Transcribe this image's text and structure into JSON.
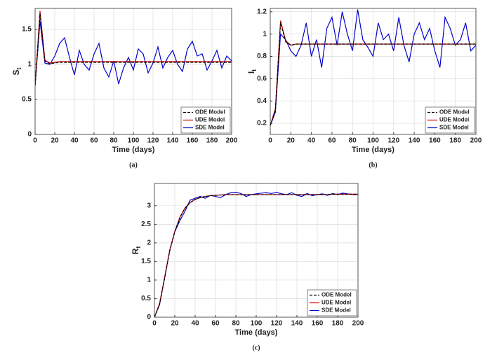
{
  "chart_data": [
    {
      "type": "line",
      "ylabel": "S",
      "ylabel_sub": "t",
      "xlabel": "Time (days)",
      "caption": "(a)",
      "x": [
        0,
        5,
        10,
        15,
        20,
        25,
        30,
        35,
        40,
        45,
        50,
        55,
        60,
        65,
        70,
        75,
        80,
        85,
        90,
        95,
        100,
        105,
        110,
        115,
        120,
        125,
        130,
        135,
        140,
        145,
        150,
        155,
        160,
        165,
        170,
        175,
        180,
        185,
        190,
        195,
        200
      ],
      "xlim": [
        0,
        200
      ],
      "xticks": [
        0,
        20,
        40,
        60,
        80,
        100,
        120,
        140,
        160,
        180,
        200
      ],
      "ylim": [
        0,
        1.8
      ],
      "yticks": [
        0,
        0.5,
        1,
        1.5
      ],
      "grid": true,
      "legend": "bottom-right",
      "series": [
        {
          "name": "ODE Model",
          "color": "#000000",
          "dash": true,
          "values": [
            0.7,
            1.72,
            1.05,
            1.01,
            1.02,
            1.03,
            1.03,
            1.03,
            1.03,
            1.03,
            1.03,
            1.03,
            1.03,
            1.03,
            1.03,
            1.03,
            1.03,
            1.03,
            1.03,
            1.03,
            1.03,
            1.03,
            1.03,
            1.03,
            1.03,
            1.03,
            1.03,
            1.03,
            1.03,
            1.03,
            1.03,
            1.03,
            1.03,
            1.03,
            1.03,
            1.03,
            1.03,
            1.03,
            1.03,
            1.03,
            1.03
          ]
        },
        {
          "name": "UDE Model",
          "color": "#cc0000",
          "dash": false,
          "values": [
            0.7,
            1.76,
            1.06,
            1.02,
            1.03,
            1.04,
            1.04,
            1.04,
            1.04,
            1.04,
            1.04,
            1.04,
            1.04,
            1.04,
            1.04,
            1.04,
            1.04,
            1.04,
            1.04,
            1.04,
            1.04,
            1.04,
            1.04,
            1.04,
            1.04,
            1.04,
            1.04,
            1.04,
            1.04,
            1.04,
            1.04,
            1.04,
            1.04,
            1.04,
            1.04,
            1.04,
            1.04,
            1.04,
            1.04,
            1.04,
            1.04
          ]
        },
        {
          "name": "SDE Model",
          "color": "#0000cc",
          "dash": false,
          "values": [
            0.7,
            1.62,
            1.02,
            1.0,
            1.12,
            1.3,
            1.38,
            1.1,
            0.85,
            1.2,
            1.0,
            0.92,
            1.15,
            1.3,
            0.95,
            0.82,
            1.05,
            0.72,
            0.95,
            1.1,
            0.92,
            1.22,
            1.15,
            0.88,
            1.02,
            1.25,
            0.95,
            1.1,
            1.2,
            1.0,
            0.9,
            1.22,
            1.33,
            1.12,
            1.15,
            0.92,
            1.05,
            1.2,
            0.95,
            1.12,
            1.05
          ]
        }
      ]
    },
    {
      "type": "line",
      "ylabel": "I",
      "ylabel_sub": "t",
      "xlabel": "Time (days)",
      "caption": "(b)",
      "x": [
        0,
        5,
        10,
        15,
        20,
        25,
        30,
        35,
        40,
        45,
        50,
        55,
        60,
        65,
        70,
        75,
        80,
        85,
        90,
        95,
        100,
        105,
        110,
        115,
        120,
        125,
        130,
        135,
        140,
        145,
        150,
        155,
        160,
        165,
        170,
        175,
        180,
        185,
        190,
        195,
        200
      ],
      "xlim": [
        0,
        200
      ],
      "xticks": [
        0,
        20,
        40,
        60,
        80,
        100,
        120,
        140,
        160,
        180,
        200
      ],
      "ylim": [
        0.1,
        1.23
      ],
      "yticks": [
        0.2,
        0.4,
        0.6,
        0.8,
        1,
        1.2
      ],
      "grid": true,
      "legend": "bottom-right",
      "series": [
        {
          "name": "ODE Model",
          "color": "#000000",
          "dash": true,
          "values": [
            0.18,
            0.32,
            1.1,
            0.93,
            0.9,
            0.91,
            0.91,
            0.91,
            0.91,
            0.91,
            0.91,
            0.91,
            0.91,
            0.91,
            0.91,
            0.91,
            0.91,
            0.91,
            0.91,
            0.91,
            0.91,
            0.91,
            0.91,
            0.91,
            0.91,
            0.91,
            0.91,
            0.91,
            0.91,
            0.91,
            0.91,
            0.91,
            0.91,
            0.91,
            0.91,
            0.91,
            0.91,
            0.91,
            0.91,
            0.91,
            0.91
          ]
        },
        {
          "name": "UDE Model",
          "color": "#cc0000",
          "dash": false,
          "values": [
            0.18,
            0.33,
            1.12,
            0.94,
            0.9,
            0.91,
            0.91,
            0.91,
            0.91,
            0.91,
            0.91,
            0.91,
            0.91,
            0.91,
            0.91,
            0.91,
            0.91,
            0.91,
            0.91,
            0.91,
            0.91,
            0.91,
            0.91,
            0.91,
            0.91,
            0.91,
            0.91,
            0.91,
            0.91,
            0.91,
            0.91,
            0.91,
            0.91,
            0.91,
            0.91,
            0.91,
            0.91,
            0.91,
            0.91,
            0.91,
            0.91
          ]
        },
        {
          "name": "SDE Model",
          "color": "#0000cc",
          "dash": false,
          "values": [
            0.18,
            0.3,
            1.0,
            0.95,
            0.85,
            0.8,
            0.9,
            1.1,
            0.8,
            0.95,
            0.7,
            1.05,
            1.15,
            0.9,
            1.2,
            1.0,
            0.85,
            1.22,
            0.95,
            0.88,
            0.8,
            1.1,
            0.95,
            1.0,
            0.85,
            1.15,
            0.9,
            0.75,
            1.0,
            1.1,
            0.95,
            1.05,
            0.85,
            0.7,
            1.15,
            1.05,
            0.9,
            0.95,
            1.1,
            0.85,
            0.9
          ]
        }
      ]
    },
    {
      "type": "line",
      "ylabel": "R",
      "ylabel_sub": "t",
      "xlabel": "Time (days)",
      "caption": "(c)",
      "x": [
        0,
        5,
        10,
        15,
        20,
        25,
        30,
        35,
        40,
        45,
        50,
        55,
        60,
        65,
        70,
        75,
        80,
        85,
        90,
        95,
        100,
        105,
        110,
        115,
        120,
        125,
        130,
        135,
        140,
        145,
        150,
        155,
        160,
        165,
        170,
        175,
        180,
        185,
        190,
        195,
        200
      ],
      "xlim": [
        0,
        200
      ],
      "xticks": [
        0,
        20,
        40,
        60,
        80,
        100,
        120,
        140,
        160,
        180,
        200
      ],
      "ylim": [
        0,
        3.6
      ],
      "yticks": [
        0,
        0.5,
        1,
        1.5,
        2,
        2.5,
        3
      ],
      "grid": true,
      "legend": "bottom-right",
      "series": [
        {
          "name": "ODE Model",
          "color": "#000000",
          "dash": true,
          "values": [
            0,
            0.35,
            1.05,
            1.78,
            2.3,
            2.68,
            2.93,
            3.08,
            3.17,
            3.22,
            3.25,
            3.27,
            3.28,
            3.29,
            3.3,
            3.3,
            3.3,
            3.3,
            3.3,
            3.3,
            3.3,
            3.3,
            3.3,
            3.3,
            3.3,
            3.3,
            3.3,
            3.3,
            3.3,
            3.3,
            3.3,
            3.3,
            3.3,
            3.3,
            3.3,
            3.31,
            3.31,
            3.31,
            3.31,
            3.31,
            3.31
          ]
        },
        {
          "name": "UDE Model",
          "color": "#cc0000",
          "dash": false,
          "values": [
            0,
            0.36,
            1.07,
            1.8,
            2.31,
            2.69,
            2.94,
            3.09,
            3.17,
            3.22,
            3.25,
            3.27,
            3.28,
            3.29,
            3.3,
            3.3,
            3.3,
            3.3,
            3.3,
            3.3,
            3.3,
            3.3,
            3.3,
            3.3,
            3.3,
            3.3,
            3.3,
            3.3,
            3.3,
            3.3,
            3.3,
            3.3,
            3.3,
            3.3,
            3.3,
            3.31,
            3.31,
            3.31,
            3.31,
            3.31,
            3.31
          ]
        },
        {
          "name": "SDE Model",
          "color": "#0000cc",
          "dash": false,
          "values": [
            0,
            0.33,
            1.05,
            1.8,
            2.3,
            2.6,
            2.85,
            3.15,
            3.2,
            3.25,
            3.2,
            3.28,
            3.25,
            3.22,
            3.3,
            3.35,
            3.36,
            3.33,
            3.25,
            3.3,
            3.32,
            3.34,
            3.35,
            3.33,
            3.36,
            3.32,
            3.3,
            3.35,
            3.28,
            3.25,
            3.33,
            3.27,
            3.3,
            3.32,
            3.28,
            3.33,
            3.3,
            3.34,
            3.32,
            3.3,
            3.3
          ]
        }
      ]
    }
  ]
}
